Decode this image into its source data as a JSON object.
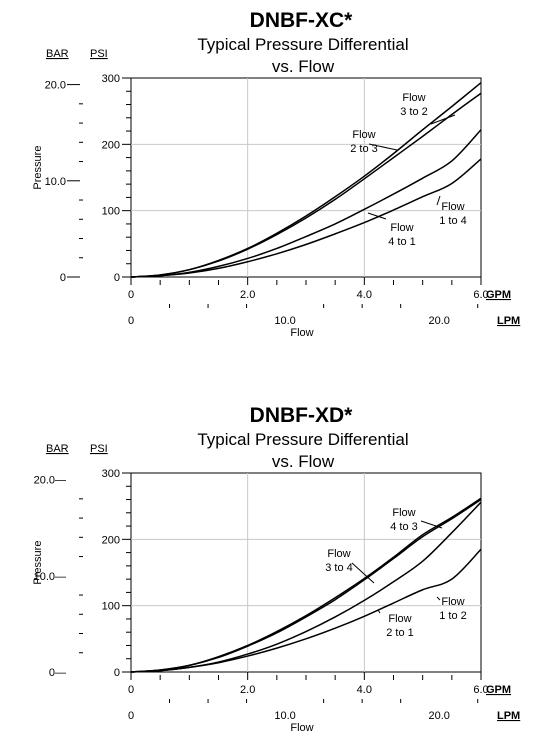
{
  "chart_data": [
    {
      "type": "line",
      "title": "DNBF-XC*",
      "subtitle_line1": "Typical Pressure Differential",
      "subtitle_line2": "vs. Flow",
      "xlabel": "Flow",
      "ylabel": "Pressure",
      "bar_header": "BAR",
      "psi_header": "PSI",
      "gpm_unit": "GPM",
      "lpm_unit": "LPM",
      "xlim": [
        0,
        6
      ],
      "ylim": [
        0,
        300
      ],
      "grid": true,
      "psi_ticks": [
        0,
        100,
        200,
        300
      ],
      "psi_tick_labels": [
        "0",
        "100",
        "200",
        "300"
      ],
      "bar_ticks": [
        0,
        10,
        20
      ],
      "bar_tick_labels": [
        "0",
        "10.0",
        "20.0"
      ],
      "gpm_ticks": [
        0,
        2,
        4,
        6
      ],
      "gpm_tick_labels": [
        "0",
        "2.0",
        "4.0",
        "6.0"
      ],
      "lpm_ticks": [
        0,
        10,
        20
      ],
      "lpm_tick_labels": [
        "0",
        "10.0",
        "20.0"
      ],
      "x": [
        0,
        0.5,
        1,
        1.5,
        2,
        2.5,
        3,
        3.5,
        4,
        4.5,
        5,
        5.5,
        6
      ],
      "series": [
        {
          "name": "Flow 3 to 2",
          "label_lines": [
            "Flow",
            "3 to 2"
          ],
          "values": [
            0,
            3,
            11,
            25,
            43,
            66,
            92,
            121,
            152,
            186,
            222,
            257,
            293
          ]
        },
        {
          "name": "Flow 2 to 3",
          "label_lines": [
            "Flow",
            "2 to 3"
          ],
          "values": [
            0,
            3,
            11,
            24,
            42,
            64,
            89,
            117,
            148,
            180,
            212,
            245,
            277
          ]
        },
        {
          "name": "Flow 1 to 4",
          "label_lines": [
            "Flow",
            "1 to 4"
          ],
          "values": [
            0,
            2,
            7,
            16,
            28,
            43,
            61,
            80,
            102,
            125,
            149,
            175,
            222
          ]
        },
        {
          "name": "Flow 4 to 1",
          "label_lines": [
            "Flow",
            "4 to 1"
          ],
          "values": [
            0,
            2,
            6,
            13,
            23,
            35,
            49,
            65,
            82,
            101,
            121,
            141,
            178
          ]
        }
      ]
    },
    {
      "type": "line",
      "title": "DNBF-XD*",
      "subtitle_line1": "Typical Pressure Differential",
      "subtitle_line2": "vs. Flow",
      "xlabel": "Flow",
      "ylabel": "Pressure",
      "bar_header": "BAR",
      "psi_header": "PSI",
      "gpm_unit": "GPM",
      "lpm_unit": "LPM",
      "xlim": [
        0,
        6
      ],
      "ylim": [
        0,
        300
      ],
      "grid": true,
      "psi_ticks": [
        0,
        100,
        200,
        300
      ],
      "psi_tick_labels": [
        "0",
        "100",
        "200",
        "300"
      ],
      "bar_ticks": [
        0,
        10,
        20
      ],
      "bar_tick_labels": [
        "0—",
        "10.0—",
        "20.0—"
      ],
      "gpm_ticks": [
        0,
        2,
        4,
        6
      ],
      "gpm_tick_labels": [
        "0",
        "2.0",
        "4.0",
        "6.0"
      ],
      "lpm_ticks": [
        0,
        10,
        20
      ],
      "lpm_tick_labels": [
        "0",
        "10.0",
        "20.0"
      ],
      "x": [
        0,
        0.5,
        1,
        1.5,
        2,
        2.5,
        3,
        3.5,
        4,
        4.5,
        5,
        5.5,
        6
      ],
      "series": [
        {
          "name": "Flow 4 to 3",
          "label_lines": [
            "Flow",
            "4 to 3"
          ],
          "values": [
            0,
            3,
            10,
            23,
            40,
            61,
            85,
            112,
            141,
            173,
            207,
            233,
            262
          ]
        },
        {
          "name": "Flow 3 to 4",
          "label_lines": [
            "Flow",
            "3 to 4"
          ],
          "values": [
            0,
            3,
            10,
            22,
            39,
            59,
            83,
            109,
            139,
            171,
            204,
            231,
            260
          ]
        },
        {
          "name": "Flow 2 to 1",
          "label_lines": [
            "Flow",
            "2 to 1"
          ],
          "values": [
            0,
            2,
            7,
            15,
            27,
            42,
            61,
            83,
            108,
            136,
            167,
            210,
            256
          ]
        },
        {
          "name": "Flow 1 to 2",
          "label_lines": [
            "Flow",
            "1 to 2"
          ],
          "values": [
            0,
            2,
            7,
            14,
            24,
            36,
            50,
            66,
            84,
            104,
            124,
            140,
            185
          ]
        }
      ]
    }
  ]
}
